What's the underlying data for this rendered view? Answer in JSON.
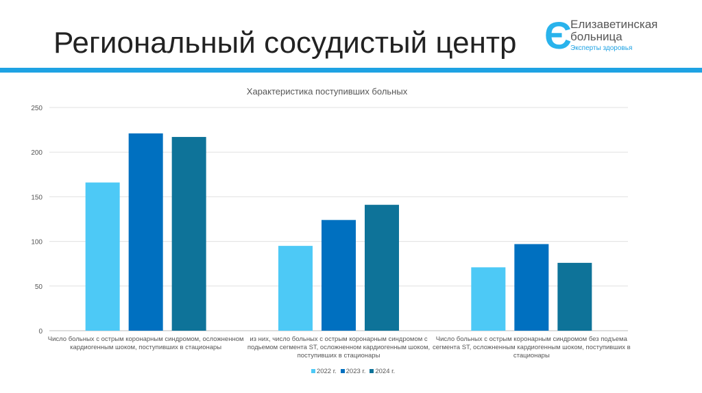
{
  "header": {
    "title": "Региональный сосудистый центр"
  },
  "logo": {
    "name_line1": "Елизаветинская",
    "name_line2": "больница",
    "tagline": "Эксперты здоровья"
  },
  "chart_data": {
    "type": "bar",
    "title": "Характеристика поступивших больных",
    "categories": [
      "Число больных с острым коронарным синдромом, осложненном кардиогенным шоком, поступивших в стационары",
      "из них, число больных с острым коронарным синдромом с подьемом сегмента ST, осложненном кардиогенным шоком, поступивших в стационары",
      "Число больных с острым коронарным синдромом без подъема сегмента ST, осложненным кардиогенным шоком, поступивших в стационары"
    ],
    "series": [
      {
        "name": "2022 г.",
        "color": "#4dc9f6",
        "values": [
          166,
          95,
          71
        ]
      },
      {
        "name": "2023 г.",
        "color": "#0070c0",
        "values": [
          221,
          124,
          97
        ]
      },
      {
        "name": "2024 г.",
        "color": "#0e7399",
        "values": [
          217,
          141,
          76
        ]
      }
    ],
    "ylim": [
      0,
      250
    ],
    "yticks": [
      0,
      50,
      100,
      150,
      200,
      250
    ],
    "grid": true,
    "legend": "bottom"
  }
}
